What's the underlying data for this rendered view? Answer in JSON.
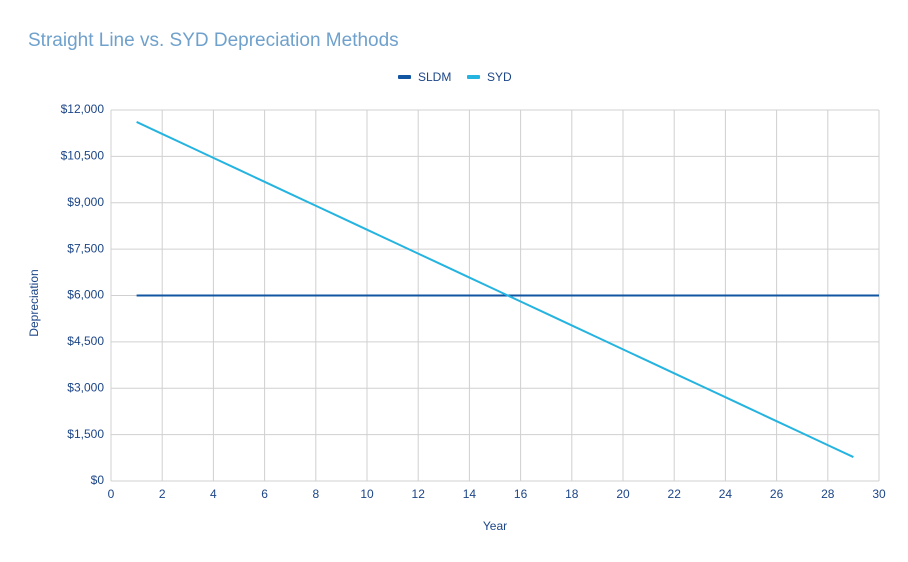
{
  "chart_data": {
    "type": "line",
    "title": "Straight Line vs. SYD Depreciation Methods",
    "xlabel": "Year",
    "ylabel": "Depreciation",
    "x": [
      1,
      2,
      3,
      4,
      5,
      6,
      7,
      8,
      9,
      10,
      11,
      12,
      13,
      14,
      15,
      16,
      17,
      18,
      19,
      20,
      21,
      22,
      23,
      24,
      25,
      26,
      27,
      28,
      29,
      30
    ],
    "series": [
      {
        "name": "SLDM",
        "color": "#1155a3",
        "values": [
          6000,
          6000,
          6000,
          6000,
          6000,
          6000,
          6000,
          6000,
          6000,
          6000,
          6000,
          6000,
          6000,
          6000,
          6000,
          6000,
          6000,
          6000,
          6000,
          6000,
          6000,
          6000,
          6000,
          6000,
          6000,
          6000,
          6000,
          6000,
          6000,
          6000
        ]
      },
      {
        "name": "SYD",
        "color": "#25b4e0",
        "values": [
          11613,
          11226,
          10839,
          10452,
          10065,
          9677,
          9290,
          8903,
          8516,
          8129,
          7742,
          7355,
          6968,
          6581,
          6194,
          5806,
          5419,
          5032,
          4645,
          4258,
          3871,
          3484,
          3097,
          2710,
          2323,
          1935,
          1548,
          1161,
          774,
          null
        ]
      }
    ],
    "xlim": [
      0,
      30
    ],
    "xticks": [
      0,
      2,
      4,
      6,
      8,
      10,
      12,
      14,
      16,
      18,
      20,
      22,
      24,
      26,
      28,
      30
    ],
    "ylim": [
      0,
      12000
    ],
    "yticks": [
      {
        "value": 0,
        "label": "$0"
      },
      {
        "value": 1500,
        "label": "$1,500"
      },
      {
        "value": 3000,
        "label": "$3,000"
      },
      {
        "value": 4500,
        "label": "$4,500"
      },
      {
        "value": 6000,
        "label": "$6,000"
      },
      {
        "value": 7500,
        "label": "$7,500"
      },
      {
        "value": 9000,
        "label": "$9,000"
      },
      {
        "value": 10500,
        "label": "$10,500"
      },
      {
        "value": 12000,
        "label": "$12,000"
      }
    ],
    "grid": true,
    "legend": "top"
  }
}
